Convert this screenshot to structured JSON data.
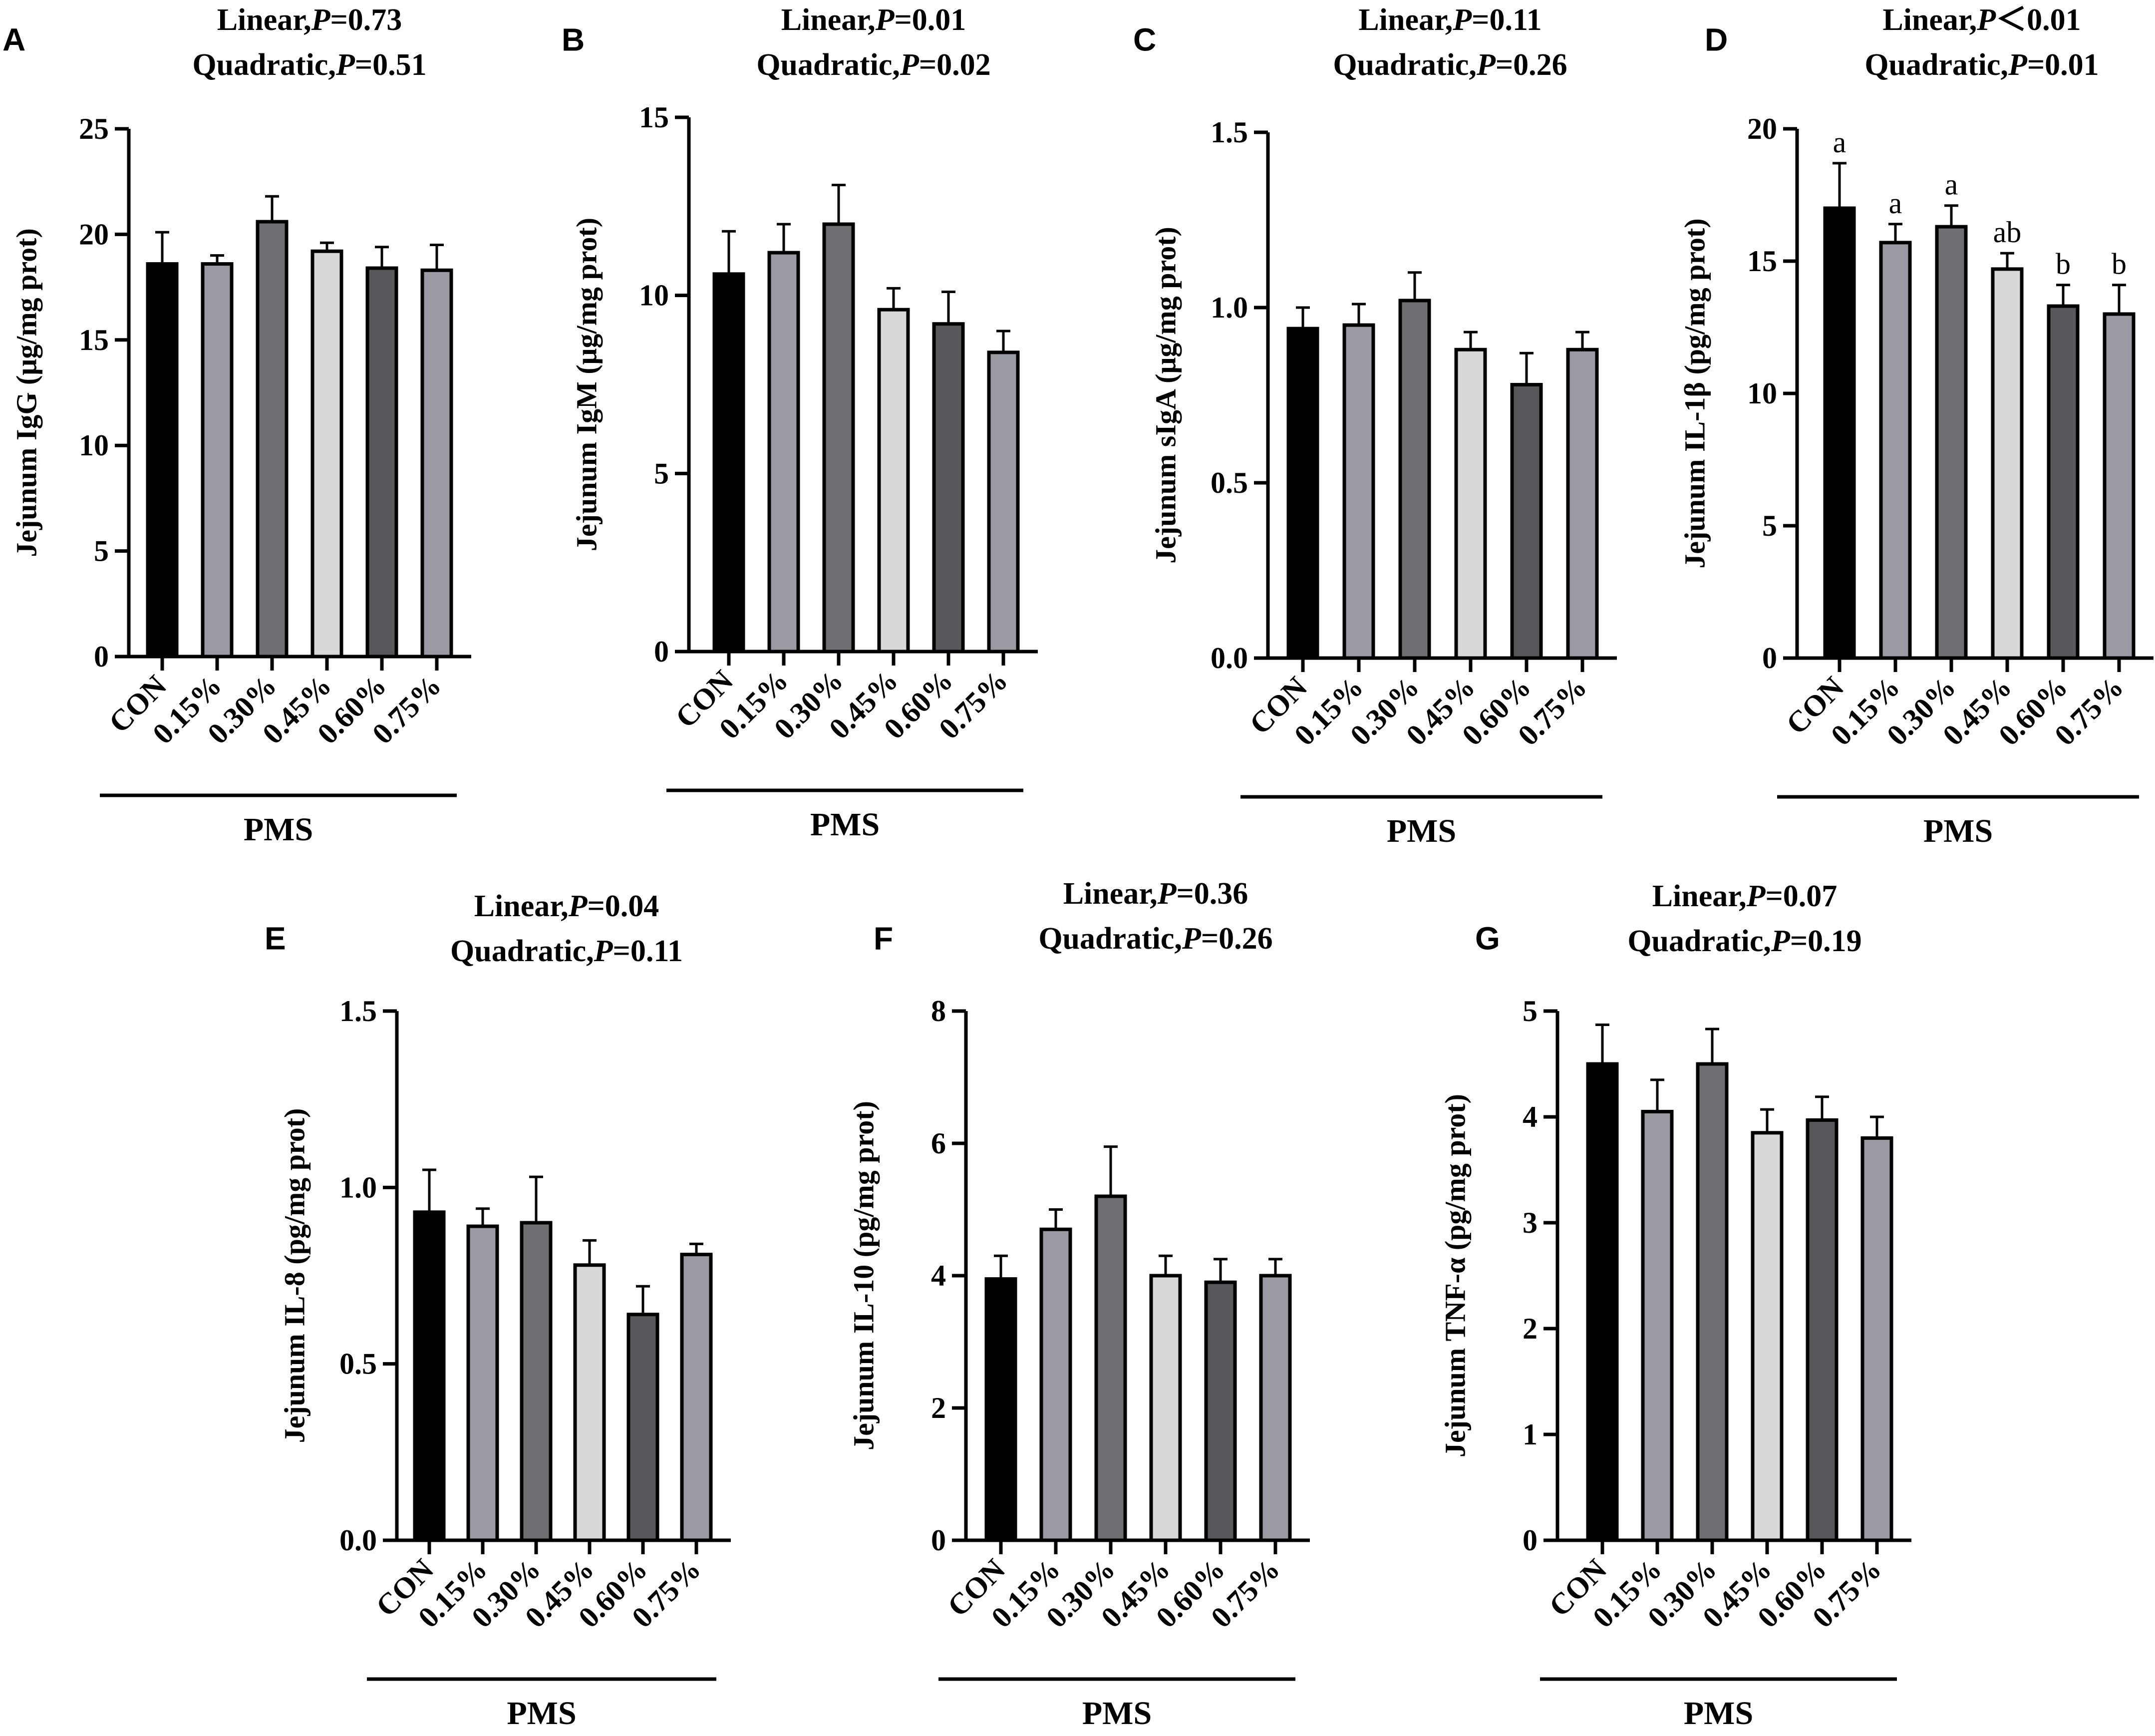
{
  "figure": {
    "group_label": "PMS",
    "categories": [
      "CON",
      "0.15%",
      "0.30%",
      "0.45%",
      "0.60%",
      "0.75%"
    ],
    "bar_colors": [
      "#000000",
      "#9a9aa2",
      "#6f6f73",
      "#d8d8d8",
      "#58585c",
      "#9a9aa2"
    ]
  },
  "chart_data": [
    {
      "panel": "A",
      "type": "bar",
      "title_line1": {
        "prefix": "Linear,",
        "italic": "P",
        "suffix": "=0.73"
      },
      "title_line2": {
        "prefix": "Quadratic,",
        "italic": "P",
        "suffix": "=0.51"
      },
      "ylabel": "Jejunum IgG (μg/mg prot)",
      "ylim": [
        0,
        25
      ],
      "ticks": [
        0,
        5,
        10,
        15,
        20,
        25
      ],
      "categories": [
        "CON",
        "0.15%",
        "0.30%",
        "0.45%",
        "0.60%",
        "0.75%"
      ],
      "values": [
        18.6,
        18.6,
        20.6,
        19.2,
        18.4,
        18.3
      ],
      "errors": [
        1.5,
        0.4,
        1.2,
        0.4,
        1.0,
        1.2
      ],
      "sig_letters": []
    },
    {
      "panel": "B",
      "type": "bar",
      "title_line1": {
        "prefix": "Linear,",
        "italic": "P",
        "suffix": "=0.01"
      },
      "title_line2": {
        "prefix": "Quadratic,",
        "italic": "P",
        "suffix": "=0.02"
      },
      "ylabel": "Jejunum IgM (μg/mg prot)",
      "ylim": [
        0,
        15
      ],
      "ticks": [
        0,
        5,
        10,
        15
      ],
      "categories": [
        "CON",
        "0.15%",
        "0.30%",
        "0.45%",
        "0.60%",
        "0.75%"
      ],
      "values": [
        10.6,
        11.2,
        12.0,
        9.6,
        9.2,
        8.4
      ],
      "errors": [
        1.2,
        0.8,
        1.1,
        0.6,
        0.9,
        0.6
      ],
      "sig_letters": []
    },
    {
      "panel": "C",
      "type": "bar",
      "title_line1": {
        "prefix": "Linear,",
        "italic": "P",
        "suffix": "=0.11"
      },
      "title_line2": {
        "prefix": "Quadratic,",
        "italic": "P",
        "suffix": "=0.26"
      },
      "ylabel": "Jejunum sIgA (μg/mg prot)",
      "ylim": [
        0,
        1.5
      ],
      "ticks": [
        "0.0",
        "0.5",
        "1.0",
        "1.5"
      ],
      "categories": [
        "CON",
        "0.15%",
        "0.30%",
        "0.45%",
        "0.60%",
        "0.75%"
      ],
      "values": [
        0.94,
        0.95,
        1.02,
        0.88,
        0.78,
        0.88
      ],
      "errors": [
        0.06,
        0.06,
        0.08,
        0.05,
        0.09,
        0.05
      ],
      "sig_letters": []
    },
    {
      "panel": "D",
      "type": "bar",
      "title_line1": {
        "prefix": "Linear,",
        "italic": "P",
        "suffix": "＜0.01"
      },
      "title_line2": {
        "prefix": "Quadratic,",
        "italic": "P",
        "suffix": "=0.01"
      },
      "ylabel": "Jejunum IL-1β (pg/mg prot)",
      "ylim": [
        0,
        20
      ],
      "ticks": [
        0,
        5,
        10,
        15,
        20
      ],
      "categories": [
        "CON",
        "0.15%",
        "0.30%",
        "0.45%",
        "0.60%",
        "0.75%"
      ],
      "values": [
        17.0,
        15.7,
        16.3,
        14.7,
        13.3,
        13.0
      ],
      "errors": [
        1.7,
        0.7,
        0.8,
        0.6,
        0.8,
        1.1
      ],
      "sig_letters": [
        "a",
        "a",
        "a",
        "ab",
        "b",
        "b"
      ]
    },
    {
      "panel": "E",
      "type": "bar",
      "title_line1": {
        "prefix": "Linear,",
        "italic": "P",
        "suffix": "=0.04"
      },
      "title_line2": {
        "prefix": "Quadratic,",
        "italic": "P",
        "suffix": "=0.11"
      },
      "ylabel": "Jejunum IL-8 (pg/mg prot)",
      "ylim": [
        0,
        1.5
      ],
      "ticks": [
        "0.0",
        "0.5",
        "1.0",
        "1.5"
      ],
      "categories": [
        "CON",
        "0.15%",
        "0.30%",
        "0.45%",
        "0.60%",
        "0.75%"
      ],
      "values": [
        0.93,
        0.89,
        0.9,
        0.78,
        0.64,
        0.81
      ],
      "errors": [
        0.12,
        0.05,
        0.13,
        0.07,
        0.08,
        0.03
      ],
      "sig_letters": []
    },
    {
      "panel": "F",
      "type": "bar",
      "title_line1": {
        "prefix": "Linear,",
        "italic": "P",
        "suffix": "=0.36"
      },
      "title_line2": {
        "prefix": "Quadratic,",
        "italic": "P",
        "suffix": "=0.26"
      },
      "ylabel": "Jejunum IL-10 (pg/mg prot)",
      "ylim": [
        0,
        8
      ],
      "ticks": [
        0,
        2,
        4,
        6,
        8
      ],
      "categories": [
        "CON",
        "0.15%",
        "0.30%",
        "0.45%",
        "0.60%",
        "0.75%"
      ],
      "values": [
        3.95,
        4.7,
        5.2,
        4.0,
        3.9,
        4.0
      ],
      "errors": [
        0.35,
        0.3,
        0.75,
        0.3,
        0.35,
        0.25
      ],
      "sig_letters": []
    },
    {
      "panel": "G",
      "type": "bar",
      "title_line1": {
        "prefix": "Linear,",
        "italic": "P",
        "suffix": "=0.07"
      },
      "title_line2": {
        "prefix": "Quadratic,",
        "italic": "P",
        "suffix": "=0.19"
      },
      "ylabel": "Jejunum TNF-α (pg/mg prot)",
      "ylim": [
        0,
        5
      ],
      "ticks": [
        0,
        1,
        2,
        3,
        4,
        5
      ],
      "categories": [
        "CON",
        "0.15%",
        "0.30%",
        "0.45%",
        "0.60%",
        "0.75%"
      ],
      "values": [
        4.5,
        4.05,
        4.5,
        3.85,
        3.97,
        3.8
      ],
      "errors": [
        0.37,
        0.3,
        0.33,
        0.22,
        0.22,
        0.2
      ],
      "sig_letters": []
    }
  ]
}
